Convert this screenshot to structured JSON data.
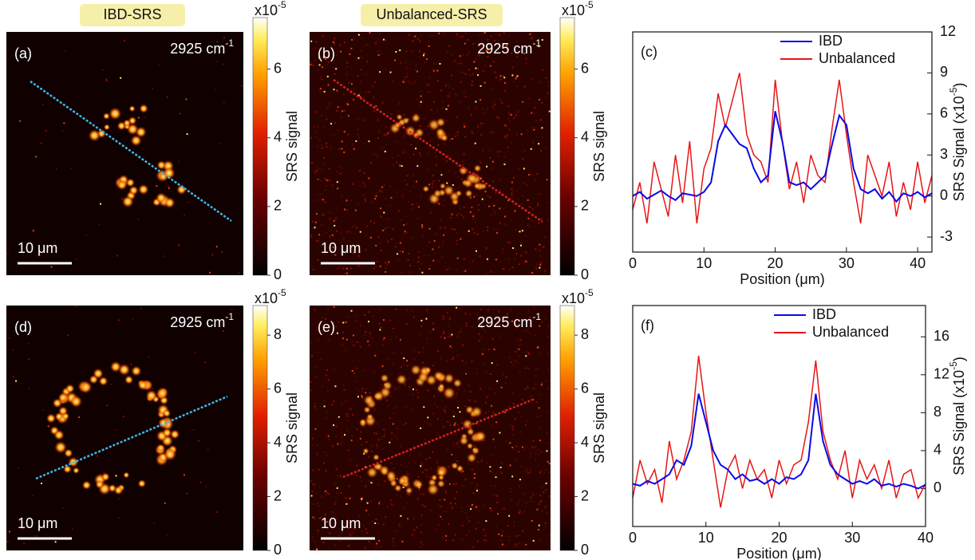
{
  "headers": [
    "IBD-SRS",
    "Unbalanced-SRS"
  ],
  "panels": [
    {
      "label": "(a)",
      "wavenumber": {
        "text": "2925 cm",
        "sup": "-1"
      },
      "scalebar": "10 μm",
      "line_color": "#3fb6e8"
    },
    {
      "label": "(b)",
      "wavenumber": {
        "text": "2925 cm",
        "sup": "-1"
      },
      "scalebar": "10 μm",
      "line_color": "#d42020"
    },
    {
      "label": "(d)",
      "wavenumber": {
        "text": "2925 cm",
        "sup": "-1"
      },
      "scalebar": "10 μm",
      "line_color": "#3fb6e8"
    },
    {
      "label": "(e)",
      "wavenumber": {
        "text": "2925 cm",
        "sup": "-1"
      },
      "scalebar": "10 μm",
      "line_color": "#d42020"
    }
  ],
  "colorbars": [
    {
      "exponent": {
        "text": "x10",
        "sup": "-5"
      },
      "label": "SRS signal",
      "lim": [
        0,
        7.5
      ],
      "ticks": [
        0,
        2,
        4,
        6
      ]
    },
    {
      "exponent": {
        "text": "x10",
        "sup": "-5"
      },
      "label": "SRS signal",
      "lim": [
        0,
        7.5
      ],
      "ticks": [
        0,
        2,
        4,
        6
      ]
    },
    {
      "exponent": {
        "text": "x10",
        "sup": "-5"
      },
      "label": "SRS signal",
      "lim": [
        0,
        9.1
      ],
      "ticks": [
        0,
        2,
        4,
        6,
        8
      ]
    },
    {
      "exponent": {
        "text": "x10",
        "sup": "-5"
      },
      "label": "SRS signal",
      "lim": [
        0,
        9.1
      ],
      "ticks": [
        0,
        2,
        4,
        6,
        8
      ]
    }
  ],
  "chart_data": [
    {
      "type": "line",
      "label": "(c)",
      "x_label": "Position (μm)",
      "y_label": {
        "text": "SRS Signal (x10",
        "sup": "-5",
        "after": ")"
      },
      "legend": "upper right",
      "xlim": [
        0,
        42
      ],
      "xticks": [
        0,
        10,
        20,
        30,
        40
      ],
      "ylim": [
        -4.1,
        12
      ],
      "yticks": [
        -3,
        0,
        3,
        6,
        9,
        12
      ],
      "x": [
        0,
        1,
        2,
        3,
        4,
        5,
        6,
        7,
        8,
        9,
        10,
        11,
        12,
        13,
        14,
        15,
        16,
        17,
        18,
        19,
        20,
        21,
        22,
        23,
        24,
        25,
        26,
        27,
        28,
        29,
        30,
        31,
        32,
        33,
        34,
        35,
        36,
        37,
        38,
        39,
        40,
        41,
        42
      ],
      "series": [
        {
          "name": "IBD",
          "color": "#0a0ae6",
          "values": [
            0,
            0.3,
            -0.2,
            0.1,
            0.4,
            0,
            -0.3,
            0.2,
            0.1,
            0,
            0.3,
            1,
            4,
            5.2,
            4.5,
            3.8,
            3.5,
            2,
            1,
            1.5,
            6.2,
            4,
            1,
            0.8,
            1,
            0.5,
            1,
            1.5,
            3.8,
            5.9,
            5.2,
            2,
            0.5,
            0.2,
            0.5,
            -0.2,
            0.3,
            -0.4,
            0.2,
            0,
            0.3,
            -0.1,
            0.2
          ]
        },
        {
          "name": "Unbalanced",
          "color": "#e81515",
          "values": [
            -1,
            1,
            -2,
            2.5,
            0.5,
            -1.5,
            3,
            -0.5,
            4,
            -2,
            2,
            3.5,
            7.5,
            5,
            7,
            9,
            4.5,
            3,
            2.5,
            1,
            8.5,
            4,
            0.5,
            2.5,
            -0.5,
            3,
            1.5,
            1,
            5,
            8.5,
            4.5,
            1,
            -2,
            3,
            1.5,
            0,
            2.5,
            -1.5,
            1,
            -1,
            2.5,
            -0.5,
            1.5
          ]
        }
      ]
    },
    {
      "type": "line",
      "label": "(f)",
      "x_label": "Position (μm)",
      "y_label": {
        "text": "SRS Signal (x10",
        "sup": "-5",
        "after": ")"
      },
      "legend": "upper right",
      "xlim": [
        0,
        40
      ],
      "xticks": [
        0,
        10,
        20,
        30,
        40
      ],
      "ylim": [
        -4,
        19.3
      ],
      "yticks": [
        0,
        4,
        8,
        12,
        16
      ],
      "x": [
        0,
        1,
        2,
        3,
        4,
        5,
        6,
        7,
        8,
        9,
        10,
        11,
        12,
        13,
        14,
        15,
        16,
        17,
        18,
        19,
        20,
        21,
        22,
        23,
        24,
        25,
        26,
        27,
        28,
        29,
        30,
        31,
        32,
        33,
        34,
        35,
        36,
        37,
        38,
        39,
        40
      ],
      "series": [
        {
          "name": "IBD",
          "color": "#0a0ae6",
          "values": [
            0.5,
            0.3,
            0.8,
            0.5,
            1,
            1.5,
            3,
            2.5,
            4.5,
            10,
            7,
            4,
            2.5,
            2,
            1,
            1.5,
            0.8,
            1,
            0.5,
            1,
            0.5,
            1.2,
            1,
            1.5,
            3,
            10,
            5,
            2.5,
            1.5,
            1,
            0.5,
            0.8,
            0.5,
            1,
            0.3,
            0.5,
            0.2,
            0.5,
            0.3,
            0,
            0.4
          ]
        },
        {
          "name": "Unbalanced",
          "color": "#e81515",
          "values": [
            -1,
            3,
            0.5,
            2,
            -1.5,
            5,
            1,
            3,
            6,
            14,
            8,
            3,
            -2,
            2,
            3.5,
            0,
            3,
            1,
            2,
            -1,
            3,
            0.5,
            2.5,
            3,
            7,
            13.5,
            6,
            3,
            1,
            4,
            -1,
            3,
            1,
            2.5,
            0,
            3,
            -1,
            1.5,
            2,
            -1,
            0.5
          ]
        }
      ]
    }
  ]
}
